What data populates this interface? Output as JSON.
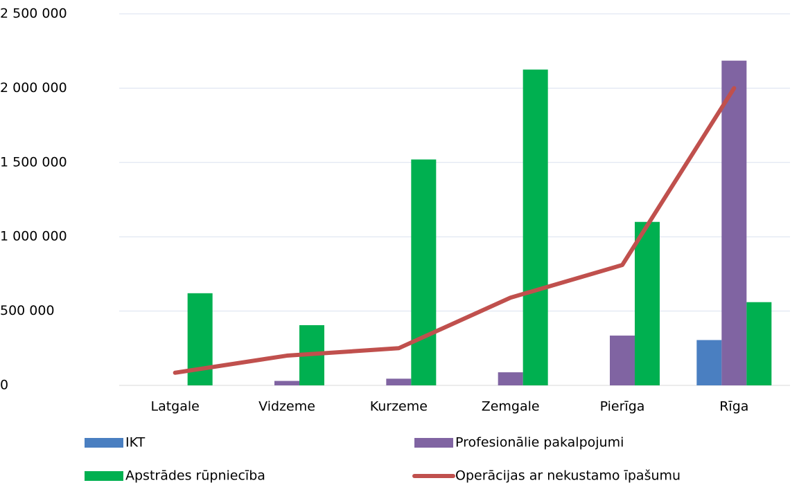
{
  "chart_data": {
    "type": "bar_line",
    "categories": [
      "Latgale",
      "Vidzeme",
      "Kurzeme",
      "Zemgale",
      "Pierīga",
      "Rīga"
    ],
    "series": [
      {
        "name": "IKT",
        "color": "#4a7fc1",
        "kind": "bar",
        "values": [
          0,
          0,
          0,
          0,
          0,
          305000
        ]
      },
      {
        "name": "Profesionālie pakalpojumi",
        "color": "#8064a2",
        "kind": "bar",
        "values": [
          0,
          30000,
          45000,
          88000,
          335000,
          2185000
        ]
      },
      {
        "name": "Apstrādes rūpniecība",
        "color": "#00b050",
        "kind": "bar",
        "values": [
          620000,
          405000,
          1520000,
          2125000,
          1100000,
          560000
        ]
      },
      {
        "name": "Operācijas ar nekustamo īpašumu",
        "color": "#c0504d",
        "kind": "line",
        "values": [
          85000,
          200000,
          250000,
          590000,
          810000,
          2000000
        ]
      }
    ],
    "ylim": [
      0,
      2500000
    ],
    "yticks": [
      0,
      {
        "value": 500000,
        "label": "500 000"
      },
      {
        "value": 1000000,
        "label": "1 000 000"
      },
      {
        "value": 1500000,
        "label": "1 500 000"
      },
      {
        "value": 2000000,
        "label": "2 000 000"
      },
      {
        "value": 2500000,
        "label": "2 500 000"
      }
    ],
    "grid": true
  }
}
